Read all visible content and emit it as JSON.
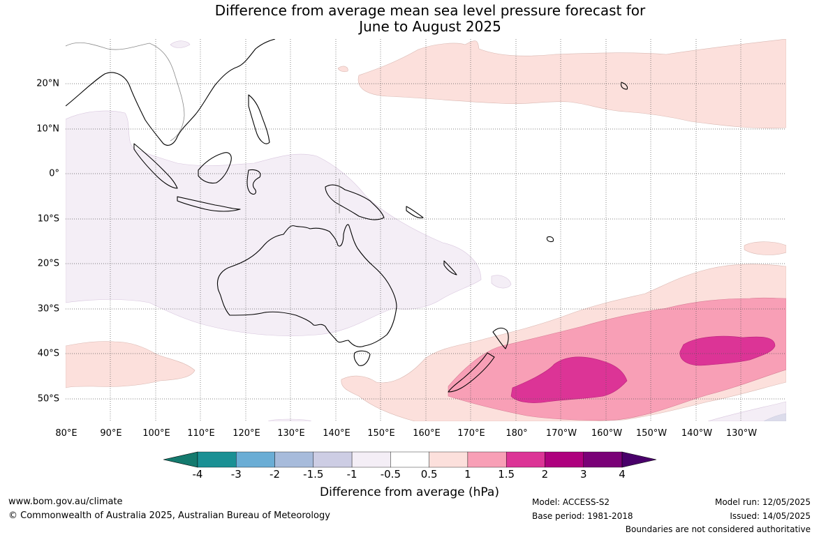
{
  "title": {
    "line1": "Difference from average mean sea level pressure forecast for",
    "line2": "June to August 2025"
  },
  "latitude_labels": [
    "20°N",
    "10°N",
    "0°",
    "10°S",
    "20°S",
    "30°S",
    "40°S",
    "50°S"
  ],
  "longitude_labels": [
    "80°E",
    "90°E",
    "100°E",
    "110°E",
    "120°E",
    "130°E",
    "140°E",
    "150°E",
    "160°E",
    "170°E",
    "180°",
    "170°W",
    "160°W",
    "150°W",
    "140°W",
    "130°W"
  ],
  "colorbar": {
    "ticks": [
      "-4",
      "-3",
      "-2",
      "-1.5",
      "-1",
      "-0.5",
      "0.5",
      "1",
      "1.5",
      "2",
      "3",
      "4"
    ],
    "colors": [
      "#147a6e",
      "#1a9094",
      "#6aadd5",
      "#a7bbdb",
      "#cdcde4",
      "#f4eef6",
      "#ffffff",
      "#fce0dc",
      "#f89fb6",
      "#dc3496",
      "#ae017e",
      "#7a0177",
      "#49006a"
    ],
    "label": "Difference from average (hPa)"
  },
  "footer": {
    "website": "www.bom.gov.au/climate",
    "copyright": "© Commonwealth of Australia 2025, Australian Bureau of Meteorology",
    "model": "Model: ACCESS-S2",
    "base_period": "Base period: 1981-2018",
    "model_run": "Model run: 12/05/2025",
    "issued": "Issued: 14/05/2025",
    "disclaimer": "Boundaries are not considered authoritative"
  }
}
